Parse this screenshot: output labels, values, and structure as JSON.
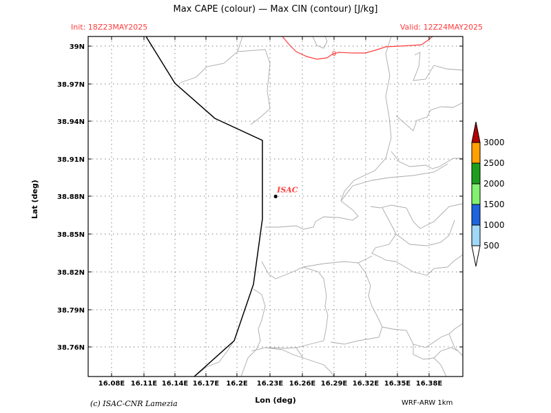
{
  "header": {
    "title": "Max CAPE (colour) — Max CIN (contour) [J/kg]",
    "init": "Init: 18Z23MAY2025",
    "valid": "Valid: 12Z24MAY2025"
  },
  "axes": {
    "xlabel": "Lon (deg)",
    "ylabel": "Lat (deg)",
    "xticks": [
      "16.08E",
      "16.11E",
      "16.14E",
      "16.17E",
      "16.2E",
      "16.23E",
      "16.26E",
      "16.29E",
      "16.32E",
      "16.35E",
      "16.38E"
    ],
    "yticks": [
      "39N",
      "38.97N",
      "38.94N",
      "38.91N",
      "38.88N",
      "38.85N",
      "38.82N",
      "38.79N",
      "38.76N"
    ],
    "grid": true
  },
  "marker": {
    "label": "ISAC",
    "lon": 16.235,
    "lat": 38.88,
    "color": "#ff3b3b"
  },
  "contour": {
    "label": "0",
    "color": "#ff3b3b"
  },
  "colorbar": {
    "levels": [
      "500",
      "1000",
      "1500",
      "2000",
      "2500",
      "3000"
    ],
    "colors": [
      "#ffffff",
      "#a0d8f8",
      "#1e64dc",
      "#82f070",
      "#1e9e1e",
      "#ffa000",
      "#b40000"
    ]
  },
  "footer": {
    "credit": "(c) ISAC-CNR Lamezia",
    "model": "WRF-ARW 1km"
  }
}
